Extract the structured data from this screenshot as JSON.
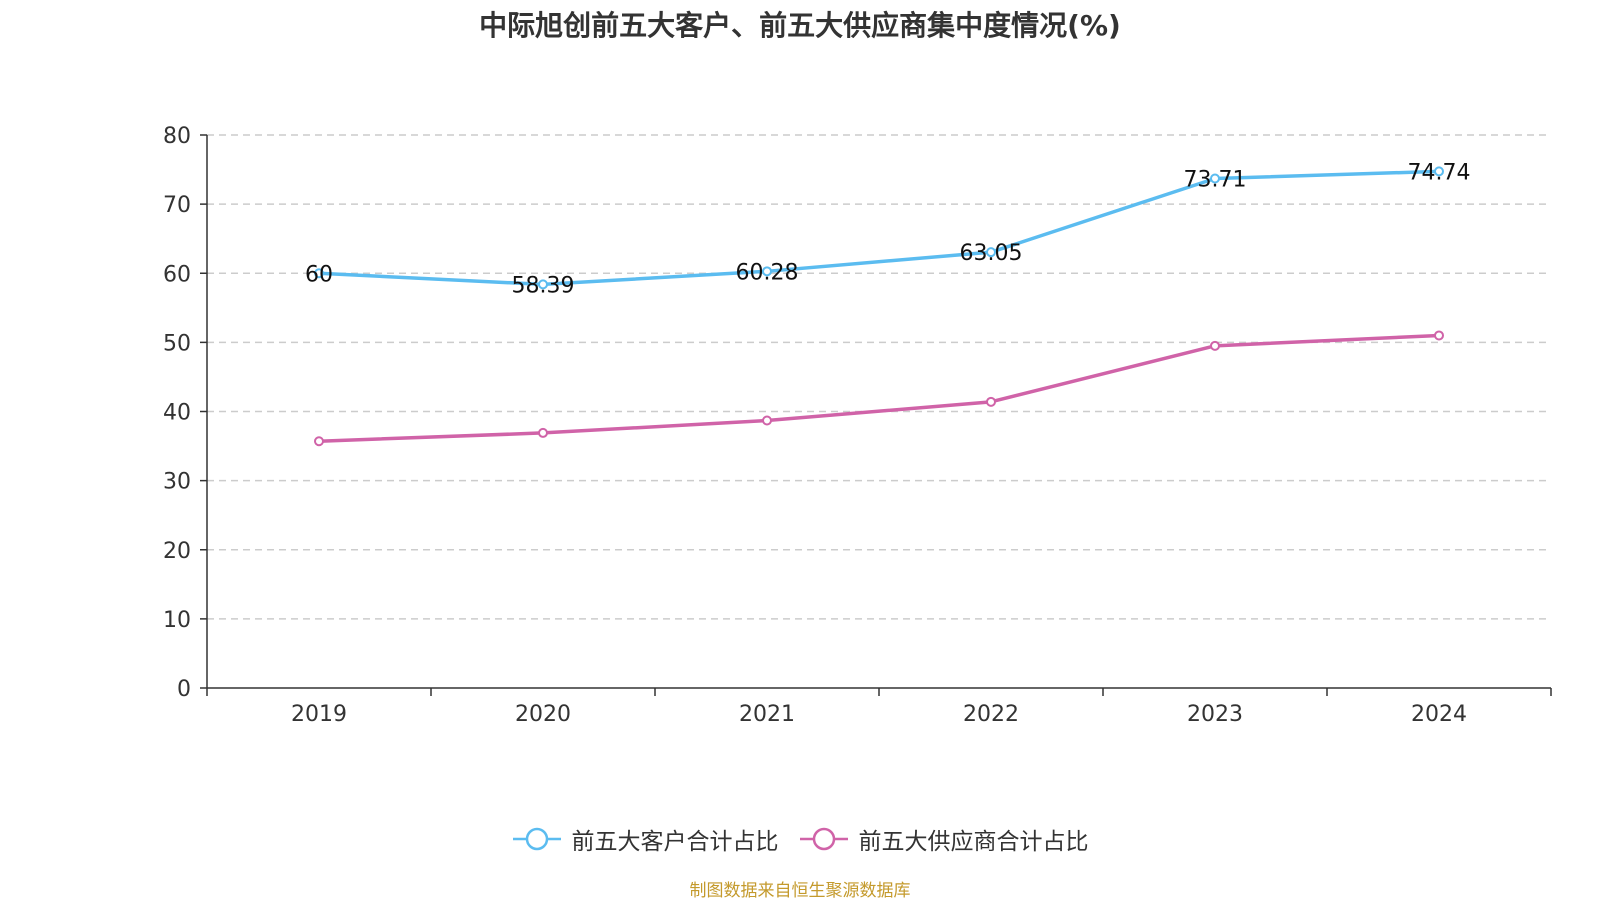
{
  "chart_data": {
    "type": "line",
    "title": "中际旭创前五大客户、前五大供应商集中度情况(%)",
    "categories": [
      "2019",
      "2020",
      "2021",
      "2022",
      "2023",
      "2024"
    ],
    "ylim": [
      0,
      80
    ],
    "yticks": [
      0,
      10,
      20,
      30,
      40,
      50,
      60,
      70,
      80
    ],
    "grid": true,
    "legend_position": "bottom",
    "series": [
      {
        "name": "前五大客户合计占比",
        "color": "#5bbcf0",
        "values": [
          60,
          58.39,
          60.28,
          63.05,
          73.71,
          74.74
        ],
        "data_labels": [
          "60",
          "58.39",
          "60.28",
          "63.05",
          "73.71",
          "74.74"
        ]
      },
      {
        "name": "前五大供应商合计占比",
        "color": "#d063a8",
        "values": [
          35.7,
          36.9,
          38.7,
          41.4,
          49.5,
          51.0
        ]
      }
    ]
  },
  "source_note": "制图数据来自恒生聚源数据库"
}
